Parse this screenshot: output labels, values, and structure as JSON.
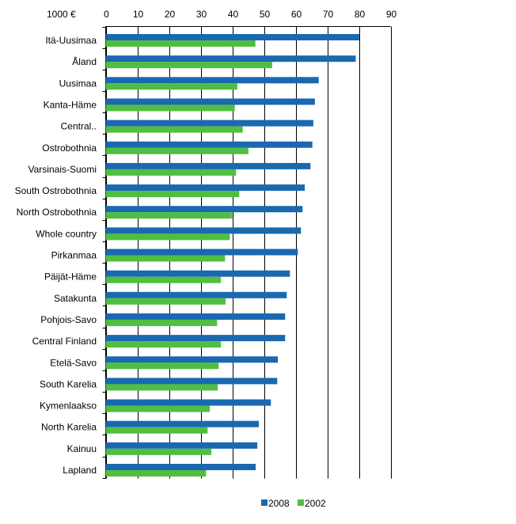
{
  "chart_data": {
    "type": "bar",
    "orientation": "horizontal",
    "unit_label": "1000 €",
    "xlim": [
      0,
      90
    ],
    "xticks": [
      0,
      10,
      20,
      30,
      40,
      50,
      60,
      70,
      80,
      90
    ],
    "grid": true,
    "legend_position": "bottom",
    "categories": [
      "Itä-Uusimaa",
      "Åland",
      "Uusimaa",
      "Kanta-Häme",
      "Central..",
      "Ostrobothnia",
      "Varsinais-Suomi",
      "South Ostrobothnia",
      "North Ostrobothnia",
      "Whole country",
      "Pirkanmaa",
      "Päijät-Häme",
      "Satakunta",
      "Pohjois-Savo",
      "Central Finland",
      "Etelä-Savo",
      "South Karelia",
      "Kymenlaakso",
      "North Karelia",
      "Kainuu",
      "Lapland"
    ],
    "series": [
      {
        "name": "2008",
        "color": "#1a69b0",
        "values": [
          80.1,
          79.0,
          67.3,
          66.1,
          65.6,
          65.3,
          64.7,
          62.9,
          62.2,
          61.7,
          60.7,
          58.2,
          57.2,
          56.7,
          56.7,
          54.4,
          54.2,
          52.2,
          48.4,
          47.9,
          47.4
        ]
      },
      {
        "name": "2002",
        "color": "#50be41",
        "values": [
          47.3,
          52.6,
          41.6,
          40.8,
          43.3,
          45.1,
          41.2,
          42.2,
          40.0,
          39.2,
          37.7,
          36.4,
          37.9,
          35.2,
          36.4,
          35.7,
          35.4,
          32.9,
          32.2,
          33.4,
          31.7
        ]
      }
    ]
  }
}
